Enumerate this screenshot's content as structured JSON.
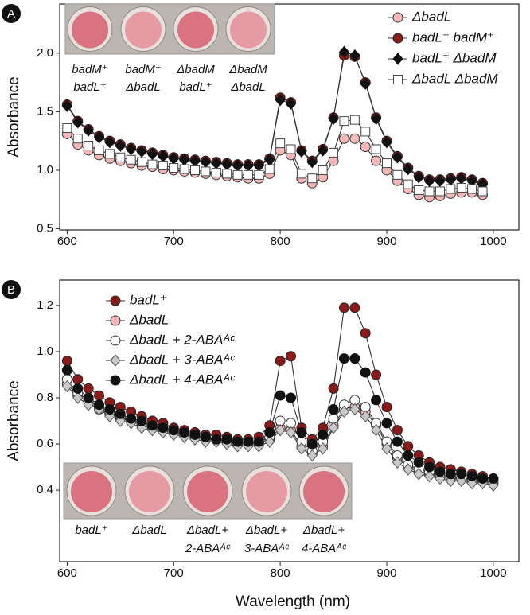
{
  "chart_data": [
    {
      "type": "line",
      "panel": "A",
      "ylabel": "Absorbance",
      "line_color": "#333333",
      "legend": "upper right",
      "xlim": [
        593,
        1024
      ],
      "xticks": [
        600,
        700,
        800,
        900,
        1000
      ],
      "ylim": [
        0.49,
        2.42
      ],
      "yticks": [
        0.5,
        {
          "value": 1.0,
          "label": "1.0"
        },
        1.5,
        {
          "value": 2.0,
          "label": "2.0"
        }
      ],
      "x": [
        600,
        610,
        620,
        630,
        640,
        650,
        660,
        670,
        680,
        690,
        700,
        710,
        720,
        730,
        740,
        750,
        760,
        770,
        780,
        790,
        800,
        810,
        820,
        830,
        840,
        850,
        860,
        870,
        880,
        890,
        900,
        910,
        920,
        930,
        940,
        950,
        960,
        970,
        980,
        990
      ],
      "series": [
        {
          "name": "ΔbadL",
          "marker": "circle",
          "color": "#f4b8b8",
          "edgecolor": "#333333",
          "values": [
            1.31,
            1.22,
            1.17,
            1.13,
            1.1,
            1.08,
            1.06,
            1.04,
            1.03,
            1.01,
            1.0,
            0.99,
            0.98,
            0.97,
            0.96,
            0.95,
            0.94,
            0.93,
            0.93,
            0.97,
            1.17,
            1.13,
            0.93,
            0.89,
            0.94,
            1.08,
            1.27,
            1.27,
            1.2,
            1.08,
            1.0,
            0.91,
            0.84,
            0.79,
            0.77,
            0.78,
            0.8,
            0.81,
            0.81,
            0.79
          ]
        },
        {
          "name": "badL⁺ badM⁺",
          "marker": "circle",
          "color": "#8b1a1a",
          "edgecolor": "#222222",
          "values": [
            1.56,
            1.42,
            1.35,
            1.29,
            1.25,
            1.22,
            1.19,
            1.17,
            1.15,
            1.13,
            1.11,
            1.1,
            1.09,
            1.08,
            1.07,
            1.06,
            1.05,
            1.05,
            1.05,
            1.1,
            1.62,
            1.58,
            1.17,
            1.08,
            1.18,
            1.45,
            1.98,
            1.97,
            1.75,
            1.45,
            1.25,
            1.12,
            1.02,
            0.95,
            0.92,
            0.92,
            0.93,
            0.94,
            0.92,
            0.89
          ]
        },
        {
          "name": "badL⁺ ΔbadM",
          "marker": "diamond",
          "color": "#111111",
          "edgecolor": "#111111",
          "values": [
            1.55,
            1.41,
            1.34,
            1.28,
            1.24,
            1.21,
            1.18,
            1.16,
            1.14,
            1.12,
            1.1,
            1.09,
            1.08,
            1.07,
            1.06,
            1.05,
            1.04,
            1.04,
            1.04,
            1.09,
            1.6,
            1.57,
            1.16,
            1.07,
            1.17,
            1.44,
            2.01,
            1.98,
            1.74,
            1.44,
            1.24,
            1.11,
            1.01,
            0.94,
            0.91,
            0.91,
            0.92,
            0.93,
            0.91,
            0.88
          ]
        },
        {
          "name": "ΔbadL ΔbadM",
          "marker": "square",
          "color": "#ffffff",
          "edgecolor": "#444444",
          "values": [
            1.36,
            1.27,
            1.21,
            1.17,
            1.14,
            1.11,
            1.09,
            1.07,
            1.05,
            1.04,
            1.02,
            1.01,
            1.0,
            0.99,
            0.98,
            0.97,
            0.96,
            0.96,
            0.96,
            1.01,
            1.23,
            1.18,
            0.97,
            0.93,
            1.0,
            1.15,
            1.42,
            1.43,
            1.33,
            1.18,
            1.06,
            0.96,
            0.88,
            0.83,
            0.82,
            0.82,
            0.84,
            0.85,
            0.84,
            0.82
          ]
        }
      ],
      "photo_labels": [
        [
          "badM⁺",
          "badL⁺"
        ],
        [
          "badM⁺",
          "ΔbadL"
        ],
        [
          "ΔbadM",
          "badL⁺"
        ],
        [
          "ΔbadM",
          "ΔbadL"
        ]
      ]
    },
    {
      "type": "line",
      "panel": "B",
      "ylabel": "Absorbance",
      "xlabel": "Wavelength (nm)",
      "line_color": "#333333",
      "legend": "upper left",
      "xlim": [
        593,
        1024
      ],
      "xticks": [
        600,
        700,
        800,
        900,
        1000
      ],
      "ylim": [
        0.09,
        1.31
      ],
      "yticks": [
        0.4,
        0.6,
        0.8,
        {
          "value": 1.0,
          "label": "1.0"
        },
        1.2
      ],
      "x": [
        600,
        610,
        620,
        630,
        640,
        650,
        660,
        670,
        680,
        690,
        700,
        710,
        720,
        730,
        740,
        750,
        760,
        770,
        780,
        790,
        800,
        810,
        820,
        830,
        840,
        850,
        860,
        870,
        880,
        890,
        900,
        910,
        920,
        930,
        940,
        950,
        960,
        970,
        980,
        990,
        1000
      ],
      "series": [
        {
          "name": "badL⁺",
          "marker": "circle",
          "color": "#8b1a1a",
          "edgecolor": "#222222",
          "values": [
            0.96,
            0.88,
            0.84,
            0.81,
            0.78,
            0.76,
            0.74,
            0.72,
            0.7,
            0.69,
            0.67,
            0.66,
            0.65,
            0.64,
            0.64,
            0.63,
            0.62,
            0.62,
            0.63,
            0.68,
            0.96,
            0.98,
            0.67,
            0.62,
            0.67,
            0.84,
            1.19,
            1.19,
            1.08,
            0.9,
            0.76,
            0.66,
            0.59,
            0.55,
            0.52,
            0.5,
            0.49,
            0.48,
            0.47,
            0.46,
            0.45
          ]
        },
        {
          "name": "ΔbadL",
          "marker": "circle",
          "color": "#f4b8b8",
          "edgecolor": "#333333",
          "values": [
            0.86,
            0.81,
            0.78,
            0.75,
            0.73,
            0.71,
            0.7,
            0.68,
            0.67,
            0.66,
            0.65,
            0.64,
            0.63,
            0.62,
            0.62,
            0.61,
            0.6,
            0.6,
            0.6,
            0.62,
            0.67,
            0.66,
            0.59,
            0.56,
            0.59,
            0.68,
            0.75,
            0.76,
            0.74,
            0.68,
            0.6,
            0.54,
            0.5,
            0.48,
            0.47,
            0.46,
            0.45,
            0.45,
            0.44,
            0.44,
            0.43
          ]
        },
        {
          "name": "ΔbadL + 2-ABAᴬᶜ",
          "marker": "circle",
          "color": "#ffffff",
          "edgecolor": "#333333",
          "values": [
            0.88,
            0.82,
            0.79,
            0.76,
            0.74,
            0.72,
            0.7,
            0.69,
            0.68,
            0.66,
            0.65,
            0.64,
            0.63,
            0.63,
            0.62,
            0.61,
            0.61,
            0.6,
            0.61,
            0.63,
            0.7,
            0.69,
            0.61,
            0.57,
            0.61,
            0.71,
            0.77,
            0.79,
            0.76,
            0.69,
            0.61,
            0.55,
            0.51,
            0.49,
            0.48,
            0.47,
            0.46,
            0.45,
            0.45,
            0.44,
            0.44
          ]
        },
        {
          "name": "ΔbadL + 3-ABAᴬᶜ",
          "marker": "diamond",
          "color": "#c8c8c8",
          "edgecolor": "#555555",
          "values": [
            0.85,
            0.8,
            0.77,
            0.75,
            0.72,
            0.7,
            0.69,
            0.67,
            0.66,
            0.65,
            0.64,
            0.63,
            0.62,
            0.61,
            0.61,
            0.6,
            0.59,
            0.59,
            0.59,
            0.61,
            0.66,
            0.65,
            0.58,
            0.55,
            0.58,
            0.67,
            0.74,
            0.75,
            0.72,
            0.66,
            0.58,
            0.52,
            0.49,
            0.47,
            0.46,
            0.45,
            0.44,
            0.44,
            0.43,
            0.43,
            0.42
          ]
        },
        {
          "name": "ΔbadL + 4-ABAᴬᶜ",
          "marker": "circle",
          "color": "#111111",
          "edgecolor": "#111111",
          "values": [
            0.92,
            0.84,
            0.8,
            0.77,
            0.75,
            0.73,
            0.71,
            0.7,
            0.68,
            0.67,
            0.66,
            0.65,
            0.64,
            0.63,
            0.62,
            0.62,
            0.61,
            0.61,
            0.61,
            0.65,
            0.81,
            0.8,
            0.65,
            0.6,
            0.64,
            0.75,
            0.97,
            0.97,
            0.91,
            0.79,
            0.69,
            0.61,
            0.55,
            0.52,
            0.5,
            0.48,
            0.47,
            0.47,
            0.46,
            0.45,
            0.45
          ]
        }
      ],
      "photo_labels": [
        [
          "badL⁺"
        ],
        [
          "ΔbadL"
        ],
        [
          "ΔbadL+",
          "2-ABAᴬᶜ"
        ],
        [
          "ΔbadL+",
          "3-ABAᴬᶜ"
        ],
        [
          "ΔbadL+",
          "4-ABAᴬᶜ"
        ]
      ]
    }
  ]
}
